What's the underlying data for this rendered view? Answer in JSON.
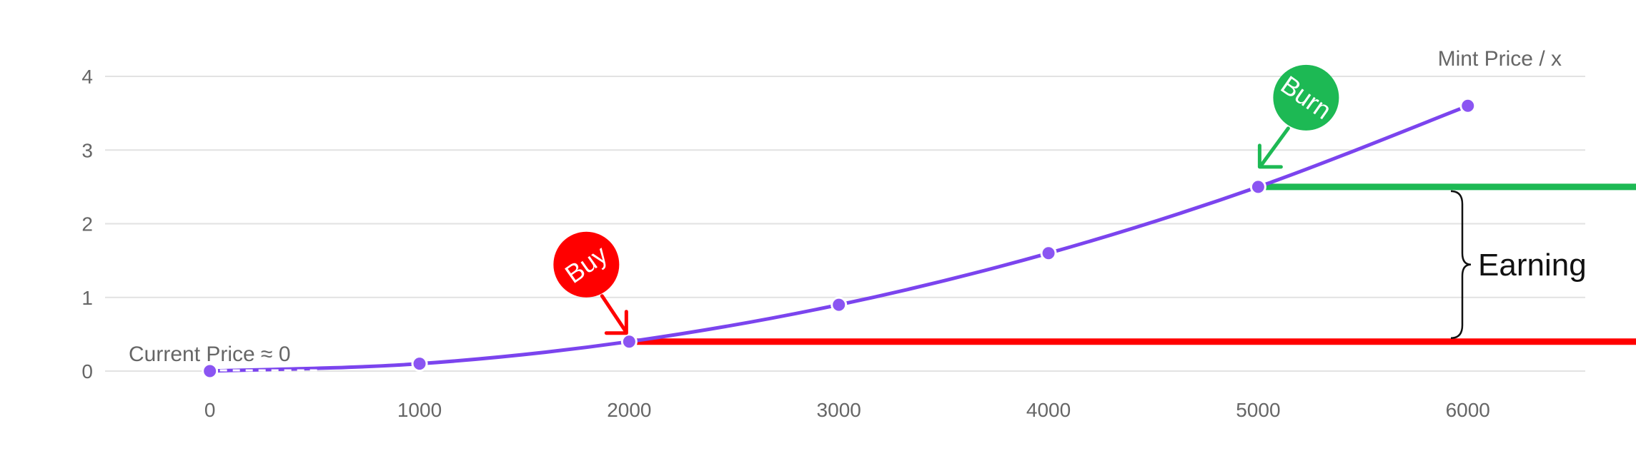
{
  "chart_data": {
    "type": "line",
    "y_axis_title": "Mint Price / x",
    "x": [
      0,
      1000,
      2000,
      3000,
      4000,
      5000,
      6000
    ],
    "values": [
      0,
      0.1,
      0.4,
      0.9,
      1.6,
      2.5,
      3.6
    ],
    "x_ticks": [
      0,
      1000,
      2000,
      3000,
      4000,
      5000,
      6000
    ],
    "y_ticks": [
      0,
      1,
      2,
      3,
      4
    ],
    "xlim": [
      -500,
      6560
    ],
    "ylim": [
      0,
      4
    ],
    "grid": true,
    "legend": "none",
    "annotations": {
      "current_price": {
        "text": "Current Price ≈ 0",
        "x": 0,
        "y": 0
      },
      "buy": {
        "text": "Buy",
        "x": 2000,
        "y": 0.4,
        "color": "#ff0000"
      },
      "burn": {
        "text": "Burn",
        "x": 5000,
        "y": 2.5,
        "color": "#1db954"
      },
      "earning": {
        "text": "Earning",
        "from_y": 0.4,
        "to_y": 2.5
      }
    },
    "colors": {
      "line": "#7b44ee",
      "point": "#8b55f2",
      "grid": "#e2e2e2",
      "buy": "#ff0000",
      "burn": "#1db954"
    }
  }
}
